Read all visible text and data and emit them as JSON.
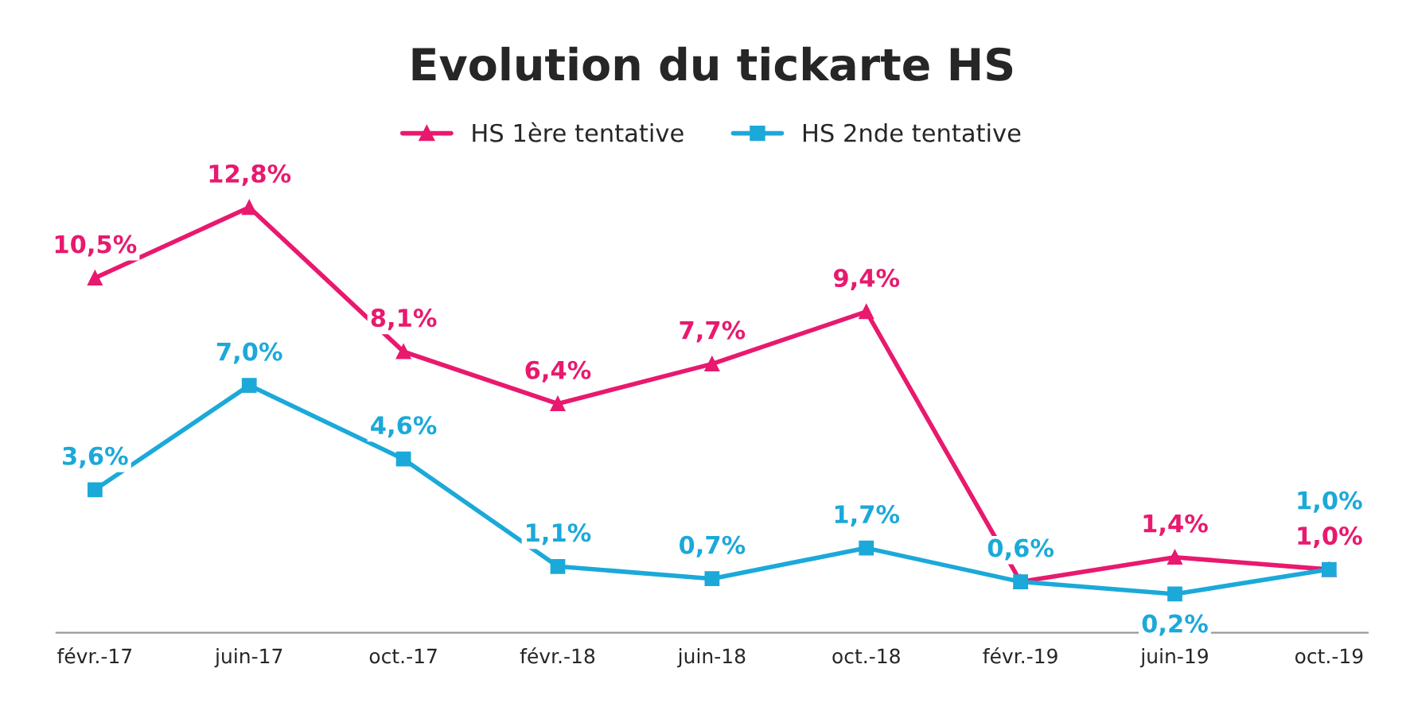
{
  "chart_data": {
    "type": "line",
    "title": "Evolution du tickarte HS",
    "categories": [
      "févr.-17",
      "juin-17",
      "oct.-17",
      "févr.-18",
      "juin-18",
      "oct.-18",
      "févr.-19",
      "juin-19",
      "oct.-19"
    ],
    "series": [
      {
        "name": "HS 1ère tentative",
        "color": "#e8196e",
        "marker": "triangle",
        "values": [
          10.5,
          12.8,
          8.1,
          6.4,
          7.7,
          9.4,
          0.6,
          1.4,
          1.0
        ],
        "value_labels": [
          "10,5%",
          "12,8%",
          "8,1%",
          "6,4%",
          "7,7%",
          "9,4%",
          null,
          "1,4%",
          "1,0%"
        ]
      },
      {
        "name": "HS 2nde tentative",
        "color": "#1ba9d9",
        "marker": "square",
        "values": [
          3.6,
          7.0,
          4.6,
          1.1,
          0.7,
          1.7,
          0.6,
          0.2,
          1.0
        ],
        "value_labels": [
          "3,6%",
          "7,0%",
          "4,6%",
          "1,1%",
          "0,7%",
          "1,7%",
          "0,6%",
          "0,2%",
          "1,0%"
        ]
      }
    ],
    "legend": "top",
    "grid": false,
    "tick_labels": "x",
    "line_style": "solid"
  }
}
